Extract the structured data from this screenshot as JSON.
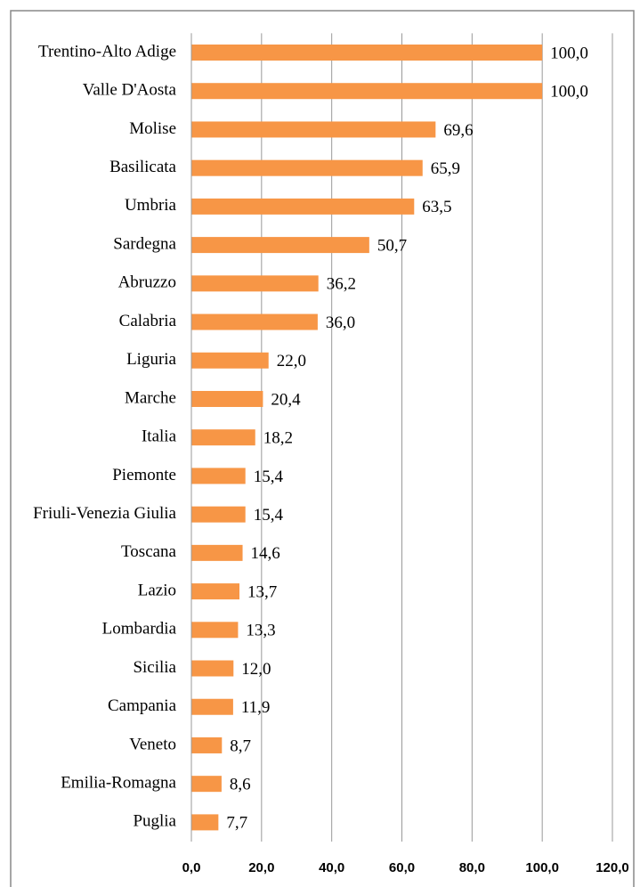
{
  "chart_data": {
    "type": "barh",
    "categories": [
      "Trentino-Alto Adige",
      "Valle D'Aosta",
      "Molise",
      "Basilicata",
      "Umbria",
      "Sardegna",
      "Abruzzo",
      "Calabria",
      "Liguria",
      "Marche",
      "Italia",
      "Piemonte",
      "Friuli-Venezia Giulia",
      "Toscana",
      "Lazio",
      "Lombardia",
      "Sicilia",
      "Campania",
      "Veneto",
      "Emilia-Romagna",
      "Puglia"
    ],
    "values": [
      100,
      100,
      69.6,
      65.9,
      63.5,
      50.7,
      36.2,
      36,
      22,
      20.4,
      18.2,
      15.4,
      15.4,
      14.6,
      13.7,
      13.3,
      12,
      11.9,
      8.7,
      8.6,
      7.7
    ],
    "value_labels": [
      "100,0",
      "100,0",
      "69,6",
      "65,9",
      "63,5",
      "50,7",
      "36,2",
      "36,0",
      "22,0",
      "20,4",
      "18,2",
      "15,4",
      "15,4",
      "14,6",
      "13,7",
      "13,3",
      "12,0",
      "11,9",
      "8,7",
      "8,6",
      "7,7"
    ],
    "color": "#f79646",
    "xlim": [
      0,
      120
    ],
    "xticks": [
      {
        "value": 0,
        "label": "0,0"
      },
      {
        "value": 20,
        "label": "20,0"
      },
      {
        "value": 40,
        "label": "40,0"
      },
      {
        "value": 60,
        "label": "60,0"
      },
      {
        "value": 80,
        "label": "80,0"
      },
      {
        "value": 100,
        "label": "100,0"
      },
      {
        "value": 120,
        "label": "120,0"
      }
    ],
    "grid": true
  }
}
